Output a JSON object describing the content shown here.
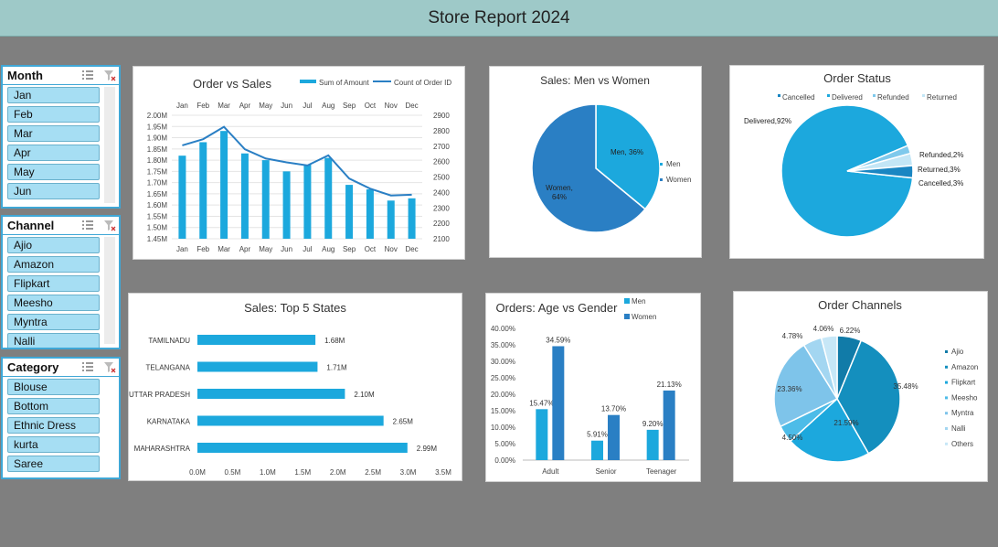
{
  "header": {
    "title": "Store Report 2024"
  },
  "slicers": {
    "month": {
      "title": "Month",
      "items": [
        "Jan",
        "Feb",
        "Mar",
        "Apr",
        "May",
        "Jun"
      ]
    },
    "channel": {
      "title": "Channel",
      "items": [
        "Ajio",
        "Amazon",
        "Flipkart",
        "Meesho",
        "Myntra",
        "Nalli"
      ]
    },
    "category": {
      "title": "Category",
      "items": [
        "Blouse",
        "Bottom",
        "Ethnic Dress",
        "kurta",
        "Saree"
      ]
    }
  },
  "colors": {
    "primary": "#1ca8dd",
    "dark": "#2a7fc4",
    "header_bg": "#9ec9c8",
    "background": "#7f7f7f"
  },
  "chart_data": [
    {
      "id": "order-vs-sales",
      "type": "bar",
      "title": "Order vs Sales",
      "categories": [
        "Jan",
        "Feb",
        "Mar",
        "Apr",
        "May",
        "Jun",
        "Jul",
        "Aug",
        "Sep",
        "Oct",
        "Nov",
        "Dec"
      ],
      "series": [
        {
          "name": "Sum of Amount",
          "kind": "bar",
          "axis": "left",
          "values": [
            1.82,
            1.88,
            1.93,
            1.83,
            1.8,
            1.75,
            1.78,
            1.81,
            1.69,
            1.67,
            1.62,
            1.63
          ]
        },
        {
          "name": "Count of Order ID",
          "kind": "line",
          "axis": "right",
          "values": [
            2705,
            2745,
            2825,
            2680,
            2620,
            2595,
            2575,
            2640,
            2490,
            2425,
            2380,
            2385
          ]
        }
      ],
      "y_left": {
        "min": 1.45,
        "max": 2.0,
        "ticks": [
          "2.00M",
          "1.95M",
          "1.90M",
          "1.85M",
          "1.80M",
          "1.75M",
          "1.70M",
          "1.65M",
          "1.60M",
          "1.55M",
          "1.50M",
          "1.45M"
        ]
      },
      "y_right": {
        "min": 2100,
        "max": 2900,
        "ticks": [
          "2900",
          "2800",
          "2700",
          "2600",
          "2500",
          "2400",
          "2300",
          "2200",
          "2100"
        ]
      },
      "legend_position": "top-right"
    },
    {
      "id": "sales-men-women",
      "type": "pie",
      "title": "Sales: Men vs Women",
      "slices": [
        {
          "label": "Men",
          "value": 36,
          "data_label": "Men, 36%"
        },
        {
          "label": "Women",
          "value": 64,
          "data_label": "Women, 64%"
        }
      ],
      "legend": [
        "Men",
        "Women"
      ],
      "legend_position": "right"
    },
    {
      "id": "order-status",
      "type": "pie",
      "title": "Order Status",
      "slices": [
        {
          "label": "Delivered",
          "value": 92,
          "data_label": "Delivered,92%"
        },
        {
          "label": "Refunded",
          "value": 2,
          "data_label": "Refunded,2%"
        },
        {
          "label": "Returned",
          "value": 3,
          "data_label": "Returned,3%"
        },
        {
          "label": "Cancelled",
          "value": 3,
          "data_label": "Cancelled,3%"
        }
      ],
      "legend": [
        "Cancelled",
        "Delivered",
        "Refunded",
        "Returned"
      ],
      "legend_position": "top"
    },
    {
      "id": "top-5-states",
      "type": "bar",
      "orientation": "horizontal",
      "title": "Sales: Top 5 States",
      "categories": [
        "TAMILNADU",
        "TELANGANA",
        "UTTAR PRADESH",
        "KARNATAKA",
        "MAHARASHTRA"
      ],
      "values": [
        1.68,
        1.71,
        2.1,
        2.65,
        2.99
      ],
      "data_labels": [
        "1.68M",
        "1.71M",
        "2.10M",
        "2.65M",
        "2.99M"
      ],
      "x_ticks": [
        "0.0M",
        "0.5M",
        "1.0M",
        "1.5M",
        "2.0M",
        "2.5M",
        "3.0M",
        "3.5M"
      ],
      "xlim": [
        0,
        3.5
      ]
    },
    {
      "id": "age-vs-gender",
      "type": "bar",
      "title": "Orders: Age vs Gender",
      "categories": [
        "Adult",
        "Senior",
        "Teenager"
      ],
      "series": [
        {
          "name": "Men",
          "values": [
            15.47,
            5.91,
            9.2
          ],
          "labels": [
            "15.47%",
            "5.91%",
            "9.20%"
          ]
        },
        {
          "name": "Women",
          "values": [
            34.59,
            13.7,
            21.13
          ],
          "labels": [
            "34.59%",
            "13.70%",
            "21.13%"
          ]
        }
      ],
      "y_ticks": [
        "40.00%",
        "35.00%",
        "30.00%",
        "25.00%",
        "20.00%",
        "15.00%",
        "10.00%",
        "5.00%",
        "0.00%"
      ],
      "ylim": [
        0,
        40
      ],
      "legend_position": "top-right"
    },
    {
      "id": "order-channels",
      "type": "pie",
      "title": "Order Channels",
      "slices": [
        {
          "label": "Ajio",
          "value": 6.22,
          "data_label": "6.22%"
        },
        {
          "label": "Amazon",
          "value": 35.48,
          "data_label": "35.48%"
        },
        {
          "label": "Flipkart",
          "value": 21.59,
          "data_label": "21.59%"
        },
        {
          "label": "Meesho",
          "value": 4.5,
          "data_label": "4.50%"
        },
        {
          "label": "Myntra",
          "value": 23.36,
          "data_label": "23.36%"
        },
        {
          "label": "Nalli",
          "value": 4.78,
          "data_label": "4.78%"
        },
        {
          "label": "Others",
          "value": 4.06,
          "data_label": "4.06%"
        }
      ],
      "legend": [
        "Ajio",
        "Amazon",
        "Flipkart",
        "Meesho",
        "Myntra",
        "Nalli",
        "Others"
      ],
      "legend_position": "right"
    }
  ]
}
